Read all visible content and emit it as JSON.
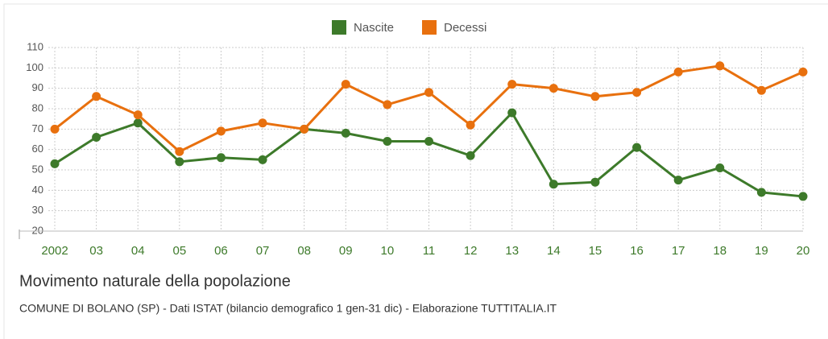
{
  "chart_data": {
    "type": "line",
    "title": "Movimento naturale della popolazione",
    "subtitle": "COMUNE DI BOLANO (SP) - Dati ISTAT (bilancio demografico 1 gen-31 dic) - Elaborazione TUTTITALIA.IT",
    "categories": [
      "2002",
      "03",
      "04",
      "05",
      "06",
      "07",
      "08",
      "09",
      "10",
      "11",
      "12",
      "13",
      "14",
      "15",
      "16",
      "17",
      "18",
      "19",
      "20"
    ],
    "series": [
      {
        "name": "Nascite",
        "color": "#3d7a2a",
        "values": [
          53,
          66,
          73,
          54,
          56,
          55,
          70,
          68,
          64,
          64,
          57,
          78,
          43,
          44,
          61,
          45,
          51,
          39,
          37
        ]
      },
      {
        "name": "Decessi",
        "color": "#e8700e",
        "values": [
          70,
          86,
          77,
          59,
          69,
          73,
          70,
          92,
          82,
          88,
          72,
          92,
          90,
          86,
          88,
          98,
          101,
          89,
          98
        ]
      }
    ],
    "ylim": [
      20,
      110
    ],
    "yticks": [
      20,
      30,
      40,
      50,
      60,
      70,
      80,
      90,
      100,
      110
    ],
    "grid": true,
    "legend": "top"
  }
}
